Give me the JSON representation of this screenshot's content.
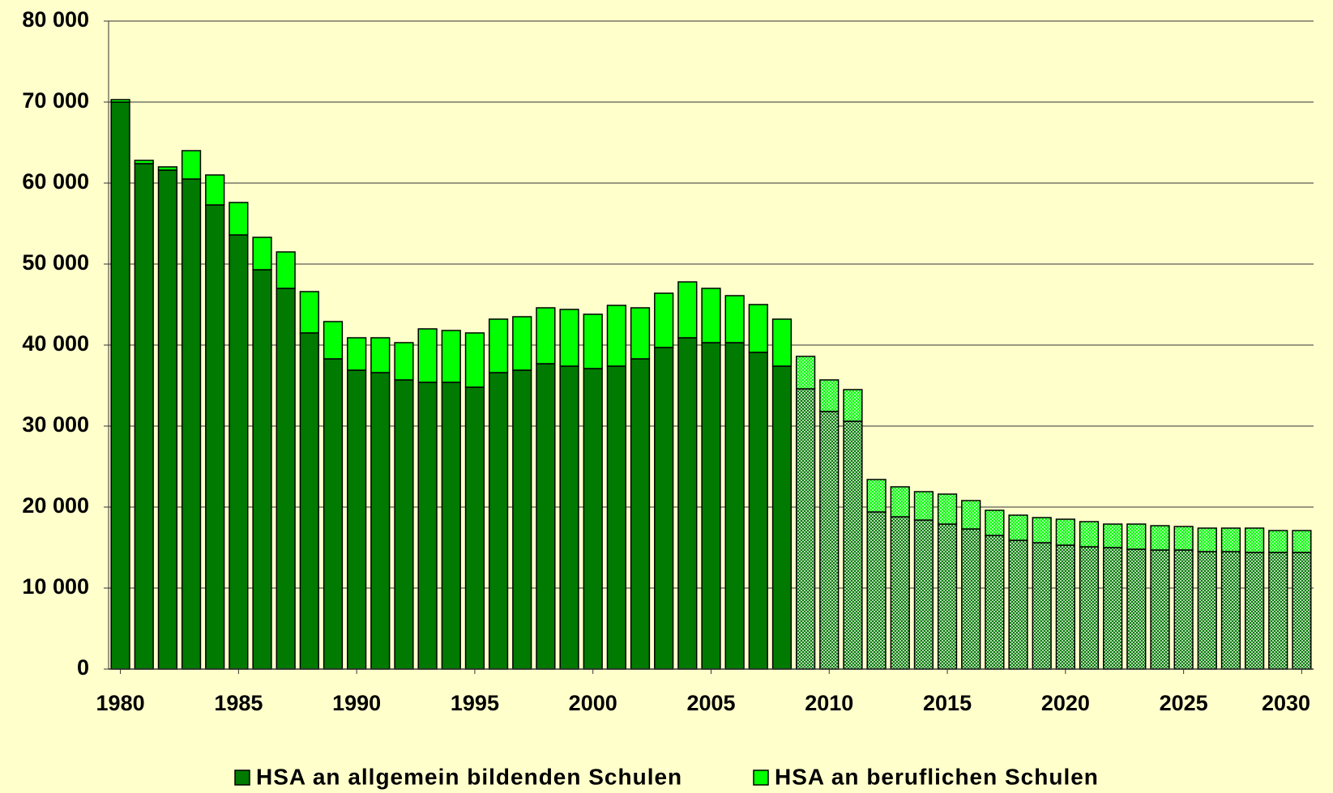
{
  "chart_data": {
    "type": "bar",
    "stacked": true,
    "x": [
      1980,
      1981,
      1982,
      1983,
      1984,
      1985,
      1986,
      1987,
      1988,
      1989,
      1990,
      1991,
      1992,
      1993,
      1994,
      1995,
      1996,
      1997,
      1998,
      1999,
      2000,
      2001,
      2002,
      2003,
      2004,
      2005,
      2006,
      2007,
      2008,
      2009,
      2010,
      2011,
      2012,
      2013,
      2014,
      2015,
      2016,
      2017,
      2018,
      2019,
      2020,
      2021,
      2022,
      2023,
      2024,
      2025,
      2026,
      2027,
      2028,
      2029,
      2030
    ],
    "xlim": [
      1979.5,
      2030.5
    ],
    "xticks": [
      1980,
      1985,
      1990,
      1995,
      2000,
      2005,
      2010,
      2015,
      2020,
      2025,
      2030
    ],
    "series": [
      {
        "name": "HSA an allgemein bildenden Schulen",
        "color": "#007a00",
        "values": [
          70000,
          62400,
          61600,
          60500,
          57300,
          53600,
          49300,
          47000,
          41500,
          38300,
          36900,
          36600,
          35700,
          35400,
          35400,
          34800,
          36600,
          36900,
          37700,
          37400,
          37100,
          37400,
          38300,
          39700,
          40900,
          40300,
          40300,
          39100,
          37400,
          34600,
          31800,
          30600,
          19400,
          18800,
          18400,
          17900,
          17300,
          16500,
          15900,
          15600,
          15300,
          15100,
          15000,
          14800,
          14700,
          14700,
          14500,
          14500,
          14400,
          14400,
          14400
        ]
      },
      {
        "name": "HSA an beruflichen Schulen",
        "color": "#00ff00",
        "values": [
          300,
          400,
          400,
          3500,
          3700,
          4000,
          4000,
          4500,
          5100,
          4600,
          4000,
          4300,
          4600,
          6600,
          6400,
          6700,
          6600,
          6600,
          6900,
          7000,
          6700,
          7500,
          6300,
          6700,
          6900,
          6700,
          5800,
          5900,
          5800,
          4000,
          3900,
          3900,
          4000,
          3700,
          3500,
          3700,
          3500,
          3100,
          3100,
          3100,
          3200,
          3100,
          2900,
          3100,
          3000,
          2900,
          2900,
          2900,
          3000,
          2700,
          2700
        ]
      }
    ],
    "hatched_from": 2009,
    "ylim": [
      0,
      80000
    ],
    "yticks": [
      0,
      {
        "value": 10000,
        "label": "10 000"
      },
      {
        "value": 20000,
        "label": "20 000"
      },
      {
        "value": 30000,
        "label": "30 000"
      },
      {
        "value": 40000,
        "label": "40 000"
      },
      {
        "value": 50000,
        "label": "50 000"
      },
      {
        "value": 60000,
        "label": "60 000"
      },
      {
        "value": 70000,
        "label": "70 000"
      },
      {
        "value": 80000,
        "label": "80 000"
      }
    ],
    "grid": true
  }
}
